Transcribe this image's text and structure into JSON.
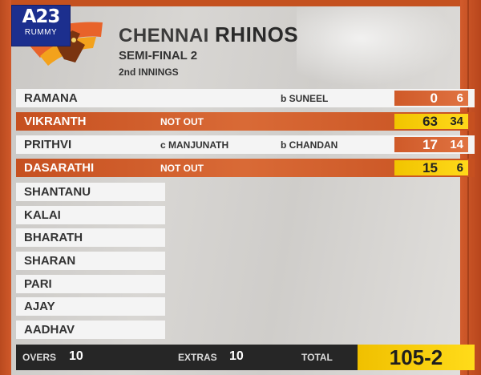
{
  "brand": {
    "logo": "A23",
    "sub": "RUMMY"
  },
  "team": {
    "first": "CHENNAI",
    "second": "RHINOS"
  },
  "stage": "SEMI-FINAL 2",
  "innings": "2nd INNINGS",
  "batsmen": [
    {
      "name": "RAMANA",
      "fielder": "",
      "dismissal": "b SUNEEL",
      "status": "",
      "runs": "0",
      "balls": "6"
    },
    {
      "name": "VIKRANTH",
      "fielder": "",
      "dismissal": "",
      "status": "NOT OUT",
      "runs": "63",
      "balls": "34"
    },
    {
      "name": "PRITHVI",
      "fielder": "c MANJUNATH",
      "dismissal": "b CHANDAN",
      "status": "",
      "runs": "17",
      "balls": "14"
    },
    {
      "name": "DASARATHI",
      "fielder": "",
      "dismissal": "",
      "status": "NOT OUT",
      "runs": "15",
      "balls": "6"
    }
  ],
  "yet_to_bat": [
    "SHANTANU",
    "KALAI",
    "BHARATH",
    "SHARAN",
    "PARI",
    "AJAY",
    "AADHAV"
  ],
  "footer": {
    "overs_label": "OVERS",
    "overs": "10",
    "extras_label": "EXTRAS",
    "extras": "10",
    "total_label": "TOTAL",
    "total": "105-2"
  },
  "colors": {
    "accent_orange": "#d0592a",
    "highlight_yellow": "#ffd91a",
    "footer_dark": "#262626"
  }
}
